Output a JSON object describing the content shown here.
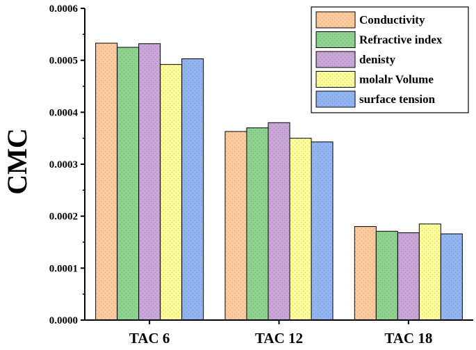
{
  "chart_data": {
    "type": "bar",
    "title": "",
    "xlabel": "",
    "ylabel": "CMC",
    "ylim": [
      0,
      0.0006
    ],
    "yticks": [
      "0.0000",
      "0.0001",
      "0.0002",
      "0.0003",
      "0.0004",
      "0.0005",
      "0.0006"
    ],
    "categories": [
      "TAC 6",
      "TAC 12",
      "TAC 18"
    ],
    "legend_position": "top-right",
    "series": [
      {
        "name": "Conductivity",
        "color": "#FDCB9B",
        "values": [
          0.000533,
          0.000363,
          0.00018
        ]
      },
      {
        "name": "Refractive index",
        "color": "#8FD28F",
        "values": [
          0.000525,
          0.00037,
          0.000171
        ]
      },
      {
        "name": "denisty",
        "color": "#C8A6D6",
        "values": [
          0.000532,
          0.00038,
          0.000168
        ]
      },
      {
        "name": "molalr Volume",
        "color": "#FFFF99",
        "values": [
          0.000492,
          0.00035,
          0.000185
        ]
      },
      {
        "name": "surface tension",
        "color": "#92B4F0",
        "values": [
          0.000503,
          0.000343,
          0.000166
        ]
      }
    ]
  }
}
